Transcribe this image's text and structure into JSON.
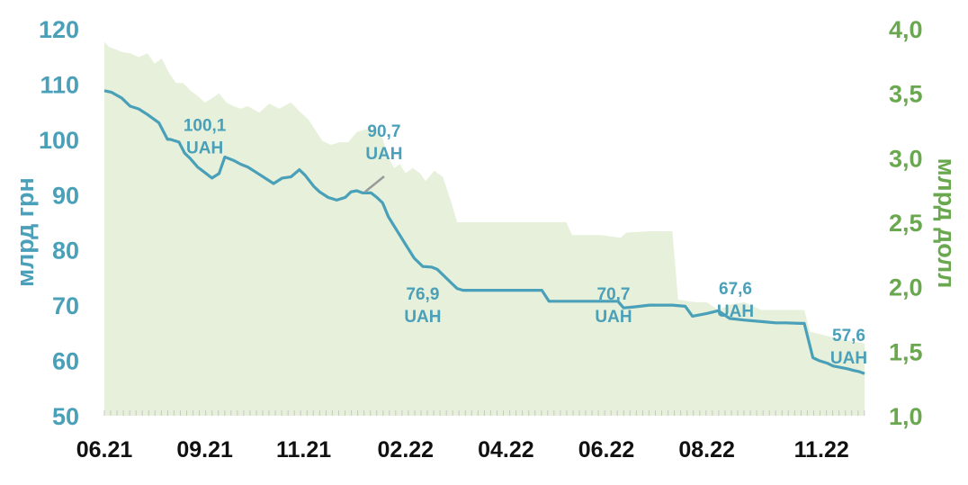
{
  "chart_data": {
    "type": "line",
    "ylabel_left": "млрд грн",
    "ylabel_right": "млрд долл",
    "ylim_left": [
      50,
      120
    ],
    "ylim_right": [
      1.0,
      4.0
    ],
    "yticks_left": [
      "50",
      "60",
      "70",
      "80",
      "90",
      "100",
      "110",
      "120"
    ],
    "yticks_right": [
      "1,0",
      "1,5",
      "2,0",
      "2,5",
      "3,0",
      "3,5",
      "4,0"
    ],
    "xticks": [
      "06.21",
      "09.21",
      "11.21",
      "02.22",
      "04.22",
      "06.22",
      "08.22",
      "11.22"
    ],
    "x_range_days": [
      0,
      530
    ],
    "xtick_days": [
      0,
      70,
      139,
      210,
      280,
      350,
      420,
      500
    ],
    "series": [
      {
        "name": "",
        "axis": "left",
        "style": "line",
        "color": "#4aa0b8",
        "x": [
          0,
          5,
          12,
          18,
          24,
          30,
          38,
          44,
          46,
          52,
          56,
          60,
          65,
          70,
          75,
          80,
          84,
          90,
          95,
          100,
          106,
          112,
          118,
          124,
          130,
          136,
          140,
          146,
          150,
          156,
          162,
          168,
          172,
          176,
          180,
          186,
          190,
          194,
          198,
          204,
          210,
          216,
          222,
          228,
          232,
          236,
          242,
          246,
          250,
          258,
          266,
          275,
          285,
          296,
          305,
          310,
          330,
          350,
          358,
          362,
          370,
          380,
          390,
          396,
          405,
          410,
          420,
          428,
          436,
          446,
          460,
          468,
          475,
          485,
          488,
          494,
          498,
          504,
          508,
          512,
          518,
          522,
          526,
          530
        ],
        "y": [
          108.8,
          108.5,
          107.5,
          106,
          105.5,
          104.5,
          103,
          100,
          100,
          99.5,
          97.5,
          96.5,
          95,
          94,
          93,
          93.8,
          96.8,
          96.2,
          95.5,
          95,
          94,
          93,
          92,
          93,
          93.2,
          94.5,
          93.5,
          91.5,
          90.5,
          89.5,
          89,
          89.5,
          90.5,
          90.7,
          90.3,
          90.3,
          89.5,
          88.5,
          86,
          83.5,
          81,
          78.5,
          77,
          76.9,
          76.5,
          75.5,
          74,
          73,
          72.7,
          72.7,
          72.7,
          72.7,
          72.7,
          72.7,
          72.7,
          70.7,
          70.7,
          70.7,
          70.7,
          69.5,
          69.7,
          70,
          70,
          70,
          69.8,
          68,
          68.5,
          69,
          67.6,
          67.3,
          67,
          66.8,
          66.8,
          66.7,
          66.7,
          60.5,
          60,
          59.5,
          59,
          58.8,
          58.5,
          58.2,
          58,
          57.6
        ]
      },
      {
        "name": "",
        "axis": "right",
        "style": "area",
        "color": "#e6f0da",
        "x": [
          0,
          3,
          8,
          12,
          18,
          24,
          30,
          35,
          40,
          45,
          50,
          55,
          60,
          65,
          70,
          75,
          80,
          85,
          90,
          95,
          100,
          108,
          115,
          122,
          130,
          136,
          142,
          148,
          152,
          158,
          164,
          170,
          176,
          182,
          188,
          194,
          198,
          202,
          206,
          210,
          215,
          220,
          224,
          230,
          236,
          242,
          246,
          260,
          280,
          300,
          322,
          326,
          346,
          360,
          364,
          380,
          396,
          400,
          412,
          420,
          428,
          436,
          446,
          458,
          466,
          472,
          488,
          492,
          500,
          510,
          520,
          530
        ],
        "y": [
          3.9,
          3.86,
          3.84,
          3.82,
          3.81,
          3.78,
          3.81,
          3.73,
          3.77,
          3.66,
          3.58,
          3.58,
          3.52,
          3.48,
          3.43,
          3.46,
          3.5,
          3.43,
          3.4,
          3.38,
          3.4,
          3.35,
          3.42,
          3.38,
          3.43,
          3.36,
          3.3,
          3.2,
          3.13,
          3.1,
          3.12,
          3.12,
          3.2,
          3.22,
          3.22,
          3.15,
          3.0,
          2.92,
          2.95,
          2.88,
          2.92,
          2.88,
          2.82,
          2.9,
          2.85,
          2.65,
          2.5,
          2.5,
          2.5,
          2.5,
          2.5,
          2.4,
          2.4,
          2.38,
          2.42,
          2.43,
          2.43,
          1.9,
          1.88,
          1.88,
          1.82,
          1.86,
          1.88,
          1.82,
          1.82,
          1.82,
          1.82,
          1.65,
          1.63,
          1.6,
          1.58,
          1.56
        ]
      }
    ],
    "annotations": [
      {
        "line1": "100,1",
        "line2": "UAH",
        "day": 70,
        "value": 101
      },
      {
        "line1": "90,7",
        "line2": "UAH",
        "day": 195,
        "value": 100
      },
      {
        "line1": "76,9",
        "line2": "UAH",
        "day": 222,
        "value": 70.5
      },
      {
        "line1": "70,7",
        "line2": "UAH",
        "day": 355,
        "value": 70.5
      },
      {
        "line1": "67,6",
        "line2": "UAH",
        "day": 440,
        "value": 71.5
      },
      {
        "line1": "57,6",
        "line2": "UAH",
        "day": 519,
        "value": 63
      }
    ],
    "grid": false,
    "legend": "none"
  }
}
